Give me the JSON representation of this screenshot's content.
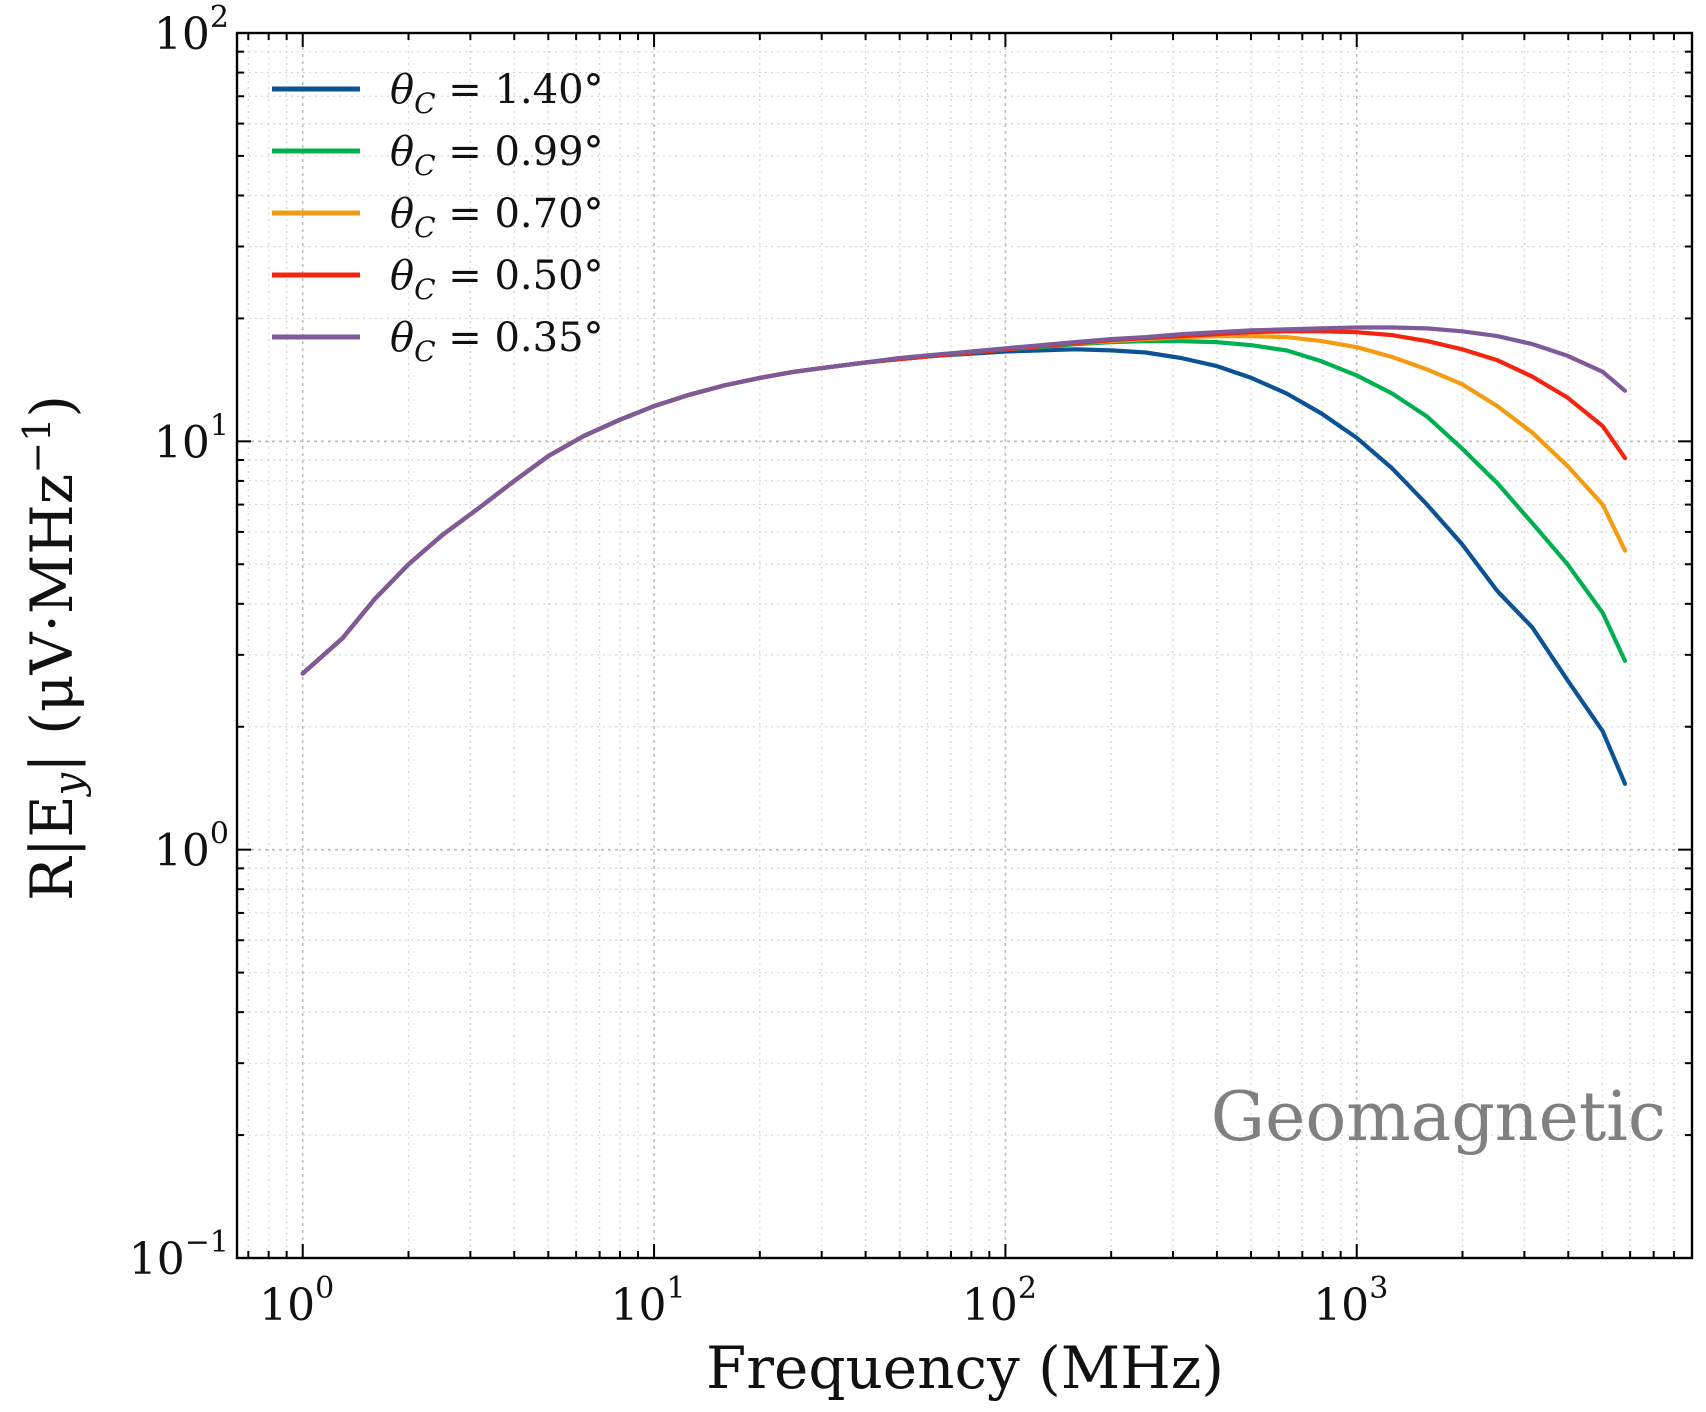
{
  "chart_data": {
    "type": "line",
    "title": "",
    "xlabel": "Frequency (MHz)",
    "ylabel_parts": {
      "pre": "R|E",
      "sub": "y",
      "mid": "| (μV·MHz",
      "sup": "−1",
      "post": ")"
    },
    "xscale": "log",
    "yscale": "log",
    "xlim": [
      0.65,
      9000
    ],
    "ylim": [
      0.1,
      100
    ],
    "grid": true,
    "legend_position": "top-left",
    "x_ticks": [
      {
        "value": 1,
        "base": "10",
        "exp": "0"
      },
      {
        "value": 10,
        "base": "10",
        "exp": "1"
      },
      {
        "value": 100,
        "base": "10",
        "exp": "2"
      },
      {
        "value": 1000,
        "base": "10",
        "exp": "3"
      }
    ],
    "y_ticks": [
      {
        "value": 0.1,
        "base": "10",
        "exp": "−1"
      },
      {
        "value": 1,
        "base": "10",
        "exp": "0"
      },
      {
        "value": 10,
        "base": "10",
        "exp": "1"
      },
      {
        "value": 100,
        "base": "10",
        "exp": "2"
      }
    ],
    "x": [
      1,
      1.3,
      1.6,
      2,
      2.5,
      3.2,
      4,
      5,
      6.3,
      8,
      10,
      12.6,
      15.8,
      20,
      25,
      31.6,
      40,
      50,
      63,
      80,
      100,
      126,
      158,
      200,
      251,
      316,
      398,
      501,
      631,
      794,
      1000,
      1259,
      1585,
      1995,
      2512,
      3162,
      3981,
      5012,
      5800
    ],
    "series": [
      {
        "name": "θC = 1.40°",
        "sym": "θ",
        "sub": "C",
        "value": " = 1.40°",
        "color": "#0b5394",
        "values": [
          2.7,
          3.3,
          4.1,
          5.0,
          5.9,
          6.9,
          8.0,
          9.2,
          10.3,
          11.3,
          12.2,
          13.0,
          13.7,
          14.3,
          14.8,
          15.2,
          15.6,
          15.9,
          16.2,
          16.4,
          16.6,
          16.7,
          16.8,
          16.7,
          16.5,
          16.0,
          15.3,
          14.3,
          13.1,
          11.7,
          10.2,
          8.6,
          7.0,
          5.6,
          4.3,
          3.5,
          2.6,
          1.95,
          1.45
        ]
      },
      {
        "name": "θC = 0.99°",
        "sym": "θ",
        "sub": "C",
        "value": " = 0.99°",
        "color": "#00b050",
        "values": [
          2.7,
          3.3,
          4.1,
          5.0,
          5.9,
          6.9,
          8.0,
          9.2,
          10.3,
          11.3,
          12.2,
          13.0,
          13.7,
          14.3,
          14.8,
          15.2,
          15.6,
          15.9,
          16.2,
          16.5,
          16.8,
          17.0,
          17.3,
          17.5,
          17.6,
          17.6,
          17.5,
          17.2,
          16.7,
          15.7,
          14.5,
          13.1,
          11.5,
          9.6,
          7.9,
          6.3,
          5.0,
          3.8,
          2.9
        ]
      },
      {
        "name": "θC = 0.70°",
        "sym": "θ",
        "sub": "C",
        "value": " = 0.70°",
        "color": "#f39c12",
        "values": [
          2.7,
          3.3,
          4.1,
          5.0,
          5.9,
          6.9,
          8.0,
          9.2,
          10.3,
          11.3,
          12.2,
          13.0,
          13.7,
          14.3,
          14.8,
          15.2,
          15.6,
          15.9,
          16.2,
          16.5,
          16.8,
          17.1,
          17.4,
          17.6,
          17.8,
          18.0,
          18.1,
          18.1,
          18.0,
          17.6,
          17.0,
          16.1,
          15.0,
          13.8,
          12.2,
          10.5,
          8.7,
          7.0,
          5.4
        ]
      },
      {
        "name": "θC = 0.50°",
        "sym": "θ",
        "sub": "C",
        "value": " = 0.50°",
        "color": "#f4250f",
        "values": [
          2.7,
          3.3,
          4.1,
          5.0,
          5.9,
          6.9,
          8.0,
          9.2,
          10.3,
          11.3,
          12.2,
          13.0,
          13.7,
          14.3,
          14.8,
          15.2,
          15.6,
          15.9,
          16.2,
          16.5,
          16.8,
          17.1,
          17.4,
          17.7,
          17.9,
          18.1,
          18.3,
          18.5,
          18.6,
          18.6,
          18.5,
          18.2,
          17.6,
          16.8,
          15.8,
          14.4,
          12.8,
          10.9,
          9.1
        ]
      },
      {
        "name": "θC = 0.35°",
        "sym": "θ",
        "sub": "C",
        "value": " = 0.35°",
        "color": "#7e5a9b",
        "values": [
          2.7,
          3.3,
          4.1,
          5.0,
          5.9,
          6.9,
          8.0,
          9.2,
          10.3,
          11.3,
          12.2,
          13.0,
          13.7,
          14.3,
          14.8,
          15.2,
          15.6,
          16.0,
          16.3,
          16.6,
          16.9,
          17.2,
          17.5,
          17.8,
          18.0,
          18.3,
          18.5,
          18.7,
          18.8,
          18.9,
          19.0,
          19.0,
          18.9,
          18.6,
          18.1,
          17.3,
          16.2,
          14.8,
          13.3
        ]
      }
    ],
    "annotations": [
      {
        "text": "Geomagnetic",
        "position": "bottom-right"
      }
    ]
  }
}
